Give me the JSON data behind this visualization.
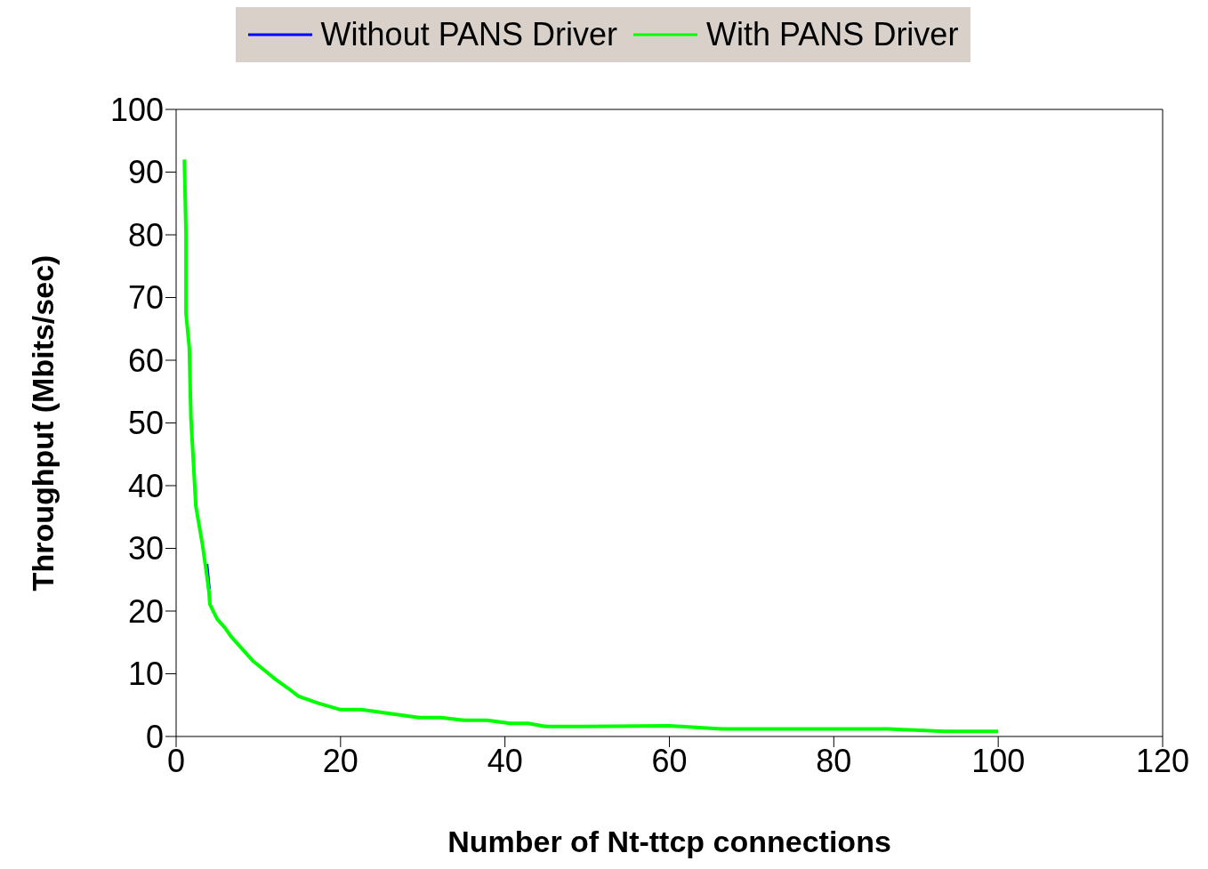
{
  "chart_data": {
    "type": "line",
    "xlabel": "Number of Nt-ttcp connections",
    "ylabel": "Throughput (Mbits/sec)",
    "xlim": [
      0,
      120
    ],
    "xticks": [
      0,
      20,
      40,
      60,
      80,
      100,
      120
    ],
    "ylim": [
      0,
      100
    ],
    "yticks": [
      0,
      10,
      20,
      30,
      40,
      50,
      60,
      70,
      80,
      90,
      100
    ],
    "x": [
      1,
      1.2,
      1.2,
      1.6,
      1.8,
      2.4,
      3.2,
      3.7,
      4,
      4.1,
      4.5,
      5,
      5.9,
      6.7,
      9.3,
      12.1,
      13.5,
      14.9,
      17.3,
      19.9,
      22.5,
      29.5,
      32.2,
      35,
      37.8,
      40.6,
      42.8,
      44.9,
      49.5,
      60,
      66.3,
      86.7,
      93.4,
      100
    ],
    "series": [
      {
        "name": "Without PANS Driver",
        "color": "#0000ff",
        "values": [
          null,
          null,
          null,
          null,
          null,
          null,
          null,
          27.5,
          23.5,
          null,
          null,
          null,
          null,
          null,
          null,
          null,
          null,
          null,
          null,
          null,
          null,
          null,
          null,
          null,
          null,
          null,
          null,
          null,
          null,
          null,
          null,
          null,
          null,
          null
        ]
      },
      {
        "name": "With PANS Driver",
        "color": "#00ff00",
        "values": [
          92,
          80,
          67.5,
          62,
          50.8,
          36.7,
          30.6,
          26,
          23,
          21.1,
          20,
          18.7,
          17.4,
          15.9,
          12.1,
          9.1,
          7.8,
          6.4,
          5.3,
          4.3,
          4.3,
          3,
          3,
          2.6,
          2.6,
          2.1,
          2.1,
          1.6,
          1.6,
          1.7,
          1.2,
          1.2,
          0.8,
          0.8
        ]
      }
    ],
    "legend": "top",
    "grid": false,
    "marker": "none",
    "line_style": "solid"
  }
}
